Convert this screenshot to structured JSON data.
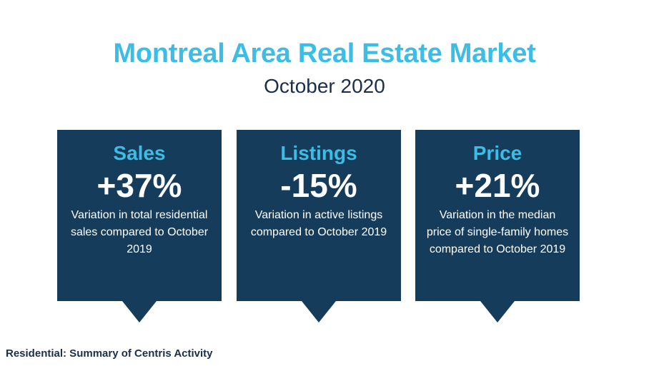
{
  "header": {
    "title": "Montreal Area Real Estate Market",
    "subtitle": "October 2020"
  },
  "cards": [
    {
      "label": "Sales",
      "value": "+37%",
      "description": "Variation in total residential sales compared to October 2019"
    },
    {
      "label": "Listings",
      "value": "-15%",
      "description": "Variation in active listings compared to October 2019"
    },
    {
      "label": "Price",
      "value": "+21%",
      "description": "Variation in the median price of single-family homes compared to October 2019"
    }
  ],
  "footer": {
    "text": "Residential: Summary of Centris Activity"
  },
  "colors": {
    "accent": "#3bbde6",
    "card_background": "#163c5c",
    "text_dark": "#1b2f48"
  }
}
